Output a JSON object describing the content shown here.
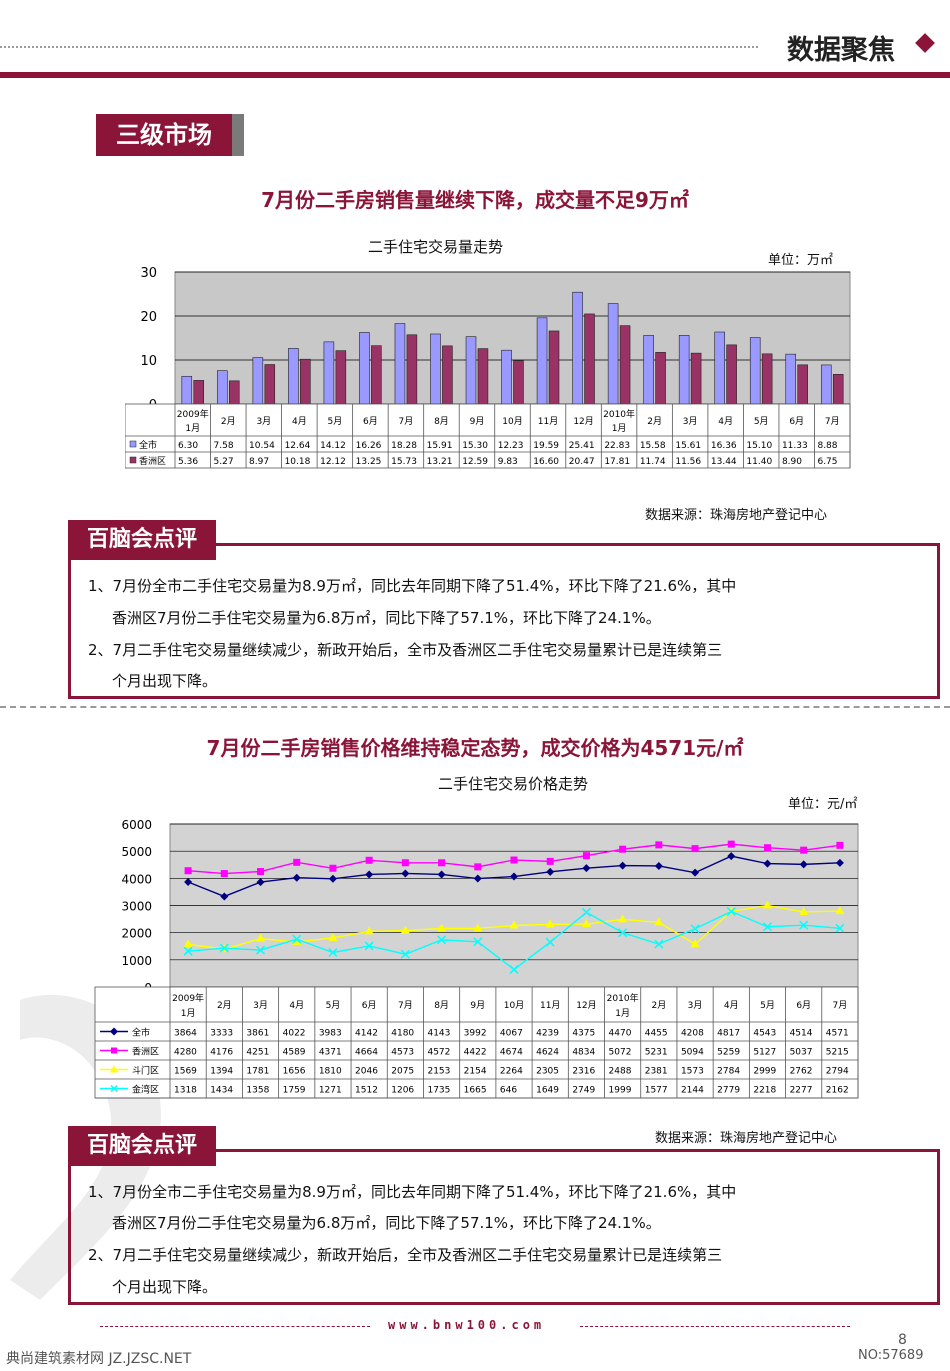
{
  "header": {
    "title": "数据聚焦"
  },
  "section": {
    "tag": "三级市场"
  },
  "chart1": {
    "headline": "7月份二手房销售量继续下降，成交量不足9万㎡",
    "title": "二手住宅交易量走势",
    "unit": "单位：万㎡",
    "source": "数据来源：珠海房地产登记中心"
  },
  "chart2": {
    "headline": "7月份二手房销售价格维持稳定态势，成交价格为4571元/㎡",
    "title": "二手住宅交易价格走势",
    "unit": "单位：元/㎡",
    "source": "数据来源：珠海房地产登记中心"
  },
  "comment1": {
    "tag": "百脑会点评",
    "lines": [
      "1、7月份全市二手住宅交易量为8.9万㎡，同比去年同期下降了51.4%，环比下降了21.6%，其中",
      "香洲区7月份二手住宅交易量为6.8万㎡，同比下降了57.1%，环比下降了24.1%。",
      "2、7月二手住宅交易量继续减少，新政开始后，全市及香洲区二手住宅交易量累计已是连续第三",
      "个月出现下降。"
    ]
  },
  "comment2": {
    "tag": "百脑会点评",
    "lines": [
      "1、7月份全市二手住宅交易量为8.9万㎡，同比去年同期下降了51.4%，环比下降了21.6%，其中",
      "香洲区7月份二手住宅交易量为6.8万㎡，同比下降了57.1%，环比下降了24.1%。",
      "2、7月二手住宅交易量继续减少，新政开始后，全市及香洲区二手住宅交易量累计已是连续第三",
      "个月出现下降。"
    ]
  },
  "footer": {
    "url": "www.bnw100.com",
    "page": "8",
    "watermark_left": "典尚建筑素材网 JZ.JZSC.NET",
    "watermark_right": "NO:57689"
  },
  "chart_data": [
    {
      "type": "bar",
      "categories": [
        [
          "2009年",
          "1月"
        ],
        [
          "2月"
        ],
        [
          "3月"
        ],
        [
          "4月"
        ],
        [
          "5月"
        ],
        [
          "6月"
        ],
        [
          "7月"
        ],
        [
          "8月"
        ],
        [
          "9月"
        ],
        [
          "10月"
        ],
        [
          "11月"
        ],
        [
          "12月"
        ],
        [
          "2010年",
          "1月"
        ],
        [
          "2月"
        ],
        [
          "3月"
        ],
        [
          "4月"
        ],
        [
          "5月"
        ],
        [
          "6月"
        ],
        [
          "7月"
        ]
      ],
      "series": [
        {
          "name": "全市",
          "color": "#9999ff",
          "values": [
            6.3,
            7.58,
            10.54,
            12.64,
            14.12,
            16.26,
            18.28,
            15.91,
            15.3,
            12.23,
            19.59,
            25.41,
            22.83,
            15.58,
            15.61,
            16.36,
            15.1,
            11.33,
            8.88
          ],
          "labels": [
            "6.30",
            "7.58",
            "10.54",
            "12.64",
            "14.12",
            "16.26",
            "18.28",
            "15.91",
            "15.30",
            "12.23",
            "19.59",
            "25.41",
            "22.83",
            "15.58",
            "15.61",
            "16.36",
            "15.10",
            "11.33",
            "8.88"
          ]
        },
        {
          "name": "香洲区",
          "color": "#993366",
          "values": [
            5.36,
            5.27,
            8.97,
            10.18,
            12.12,
            13.25,
            15.73,
            13.21,
            12.59,
            9.83,
            16.6,
            20.47,
            17.81,
            11.74,
            11.56,
            13.44,
            11.4,
            8.9,
            6.75
          ],
          "labels": [
            "5.36",
            "5.27",
            "8.97",
            "10.18",
            "12.12",
            "13.25",
            "15.73",
            "13.21",
            "12.59",
            "9.83",
            "16.60",
            "20.47",
            "17.81",
            "11.74",
            "11.56",
            "13.44",
            "11.40",
            "8.90",
            "6.75"
          ]
        }
      ],
      "ylim": [
        0,
        30
      ],
      "yticks": [
        "0",
        "10",
        "20",
        "30"
      ],
      "grid": true,
      "legend": "data-table"
    },
    {
      "type": "line",
      "categories": [
        [
          "2009年",
          "1月"
        ],
        [
          "2月"
        ],
        [
          "3月"
        ],
        [
          "4月"
        ],
        [
          "5月"
        ],
        [
          "6月"
        ],
        [
          "7月"
        ],
        [
          "8月"
        ],
        [
          "9月"
        ],
        [
          "10月"
        ],
        [
          "11月"
        ],
        [
          "12月"
        ],
        [
          "2010年",
          "1月"
        ],
        [
          "2月"
        ],
        [
          "3月"
        ],
        [
          "4月"
        ],
        [
          "5月"
        ],
        [
          "6月"
        ],
        [
          "7月"
        ]
      ],
      "series": [
        {
          "name": "全市",
          "color": "#000080",
          "marker": "diamond",
          "values": [
            3864,
            3333,
            3861,
            4022,
            3983,
            4142,
            4180,
            4143,
            3992,
            4067,
            4239,
            4375,
            4470,
            4455,
            4208,
            4817,
            4543,
            4514,
            4571
          ]
        },
        {
          "name": "香洲区",
          "color": "#ff00ff",
          "marker": "square",
          "values": [
            4280,
            4176,
            4251,
            4589,
            4371,
            4664,
            4573,
            4572,
            4422,
            4674,
            4624,
            4834,
            5072,
            5231,
            5094,
            5259,
            5127,
            5037,
            5215
          ]
        },
        {
          "name": "斗门区",
          "color": "#ffff00",
          "marker": "triangle",
          "values": [
            1569,
            1394,
            1781,
            1656,
            1810,
            2046,
            2075,
            2153,
            2154,
            2264,
            2305,
            2316,
            2488,
            2381,
            1573,
            2784,
            2999,
            2762,
            2794
          ]
        },
        {
          "name": "金湾区",
          "color": "#00ffff",
          "marker": "x",
          "values": [
            1318,
            1434,
            1358,
            1759,
            1271,
            1512,
            1206,
            1735,
            1665,
            646,
            1649,
            2749,
            1999,
            1577,
            2144,
            2779,
            2218,
            2277,
            2162
          ]
        }
      ],
      "ylim": [
        0,
        6000
      ],
      "yticks": [
        "0",
        "1000",
        "2000",
        "3000",
        "4000",
        "5000",
        "6000"
      ],
      "grid": true,
      "legend": "data-table"
    }
  ]
}
